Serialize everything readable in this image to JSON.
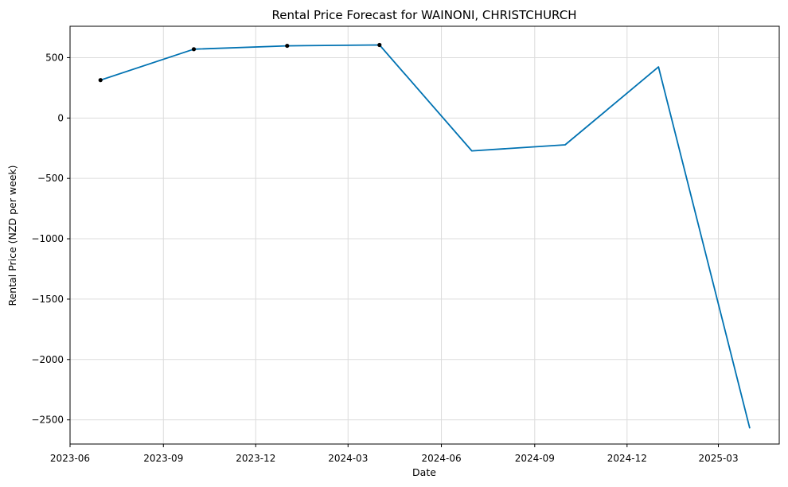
{
  "chart_data": {
    "type": "line",
    "title": "Rental Price Forecast for WAINONI, CHRISTCHURCH",
    "xlabel": "Date",
    "ylabel": "Rental Price (NZD per week)",
    "x_ticks": [
      "2023-06",
      "2023-09",
      "2023-12",
      "2024-03",
      "2024-06",
      "2024-09",
      "2024-12",
      "2025-03"
    ],
    "y_ticks": [
      500,
      0,
      -500,
      -1000,
      -1500,
      -2000,
      -2500
    ],
    "y_tick_labels": [
      "500",
      "0",
      "−500",
      "−1000",
      "−1500",
      "−2000",
      "−2500"
    ],
    "xlim": [
      "2023-06-01",
      "2025-04-30"
    ],
    "ylim": [
      -2700,
      760
    ],
    "grid": true,
    "series": [
      {
        "type": "forecast",
        "color": "#0072B2",
        "x": [
          "2023-07-01",
          "2023-10-01",
          "2024-01-01",
          "2024-04-01",
          "2024-07-01",
          "2024-10-01",
          "2025-01-01",
          "2025-04-01"
        ],
        "values": [
          314,
          570,
          598,
          605,
          -272,
          -222,
          423,
          -2570
        ]
      },
      {
        "type": "observed",
        "color": "#000000",
        "x": [
          "2023-07-01",
          "2023-10-01",
          "2024-01-01",
          "2024-04-01"
        ],
        "values": [
          314,
          570,
          598,
          605
        ]
      }
    ]
  }
}
